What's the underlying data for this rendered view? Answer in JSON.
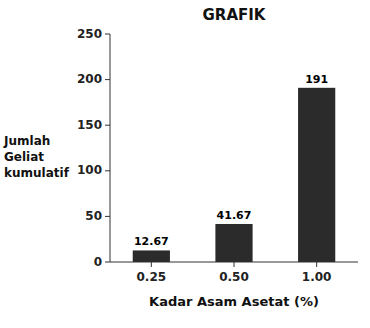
{
  "chart_data": {
    "type": "bar",
    "title": "GRAFIK",
    "categories": [
      "0.25",
      "0.50",
      "1.00"
    ],
    "values": [
      12.67,
      41.67,
      191
    ],
    "color": "#2b2b2b",
    "xlabel": "Kadar Asam Asetat (%)",
    "ylabel": [
      "Jumlah",
      "Geliat",
      "kumulatif"
    ],
    "ylim": [
      0,
      250
    ],
    "yticks": [
      0,
      50,
      100,
      150,
      200,
      250
    ],
    "grid": false,
    "data_labels": true
  }
}
